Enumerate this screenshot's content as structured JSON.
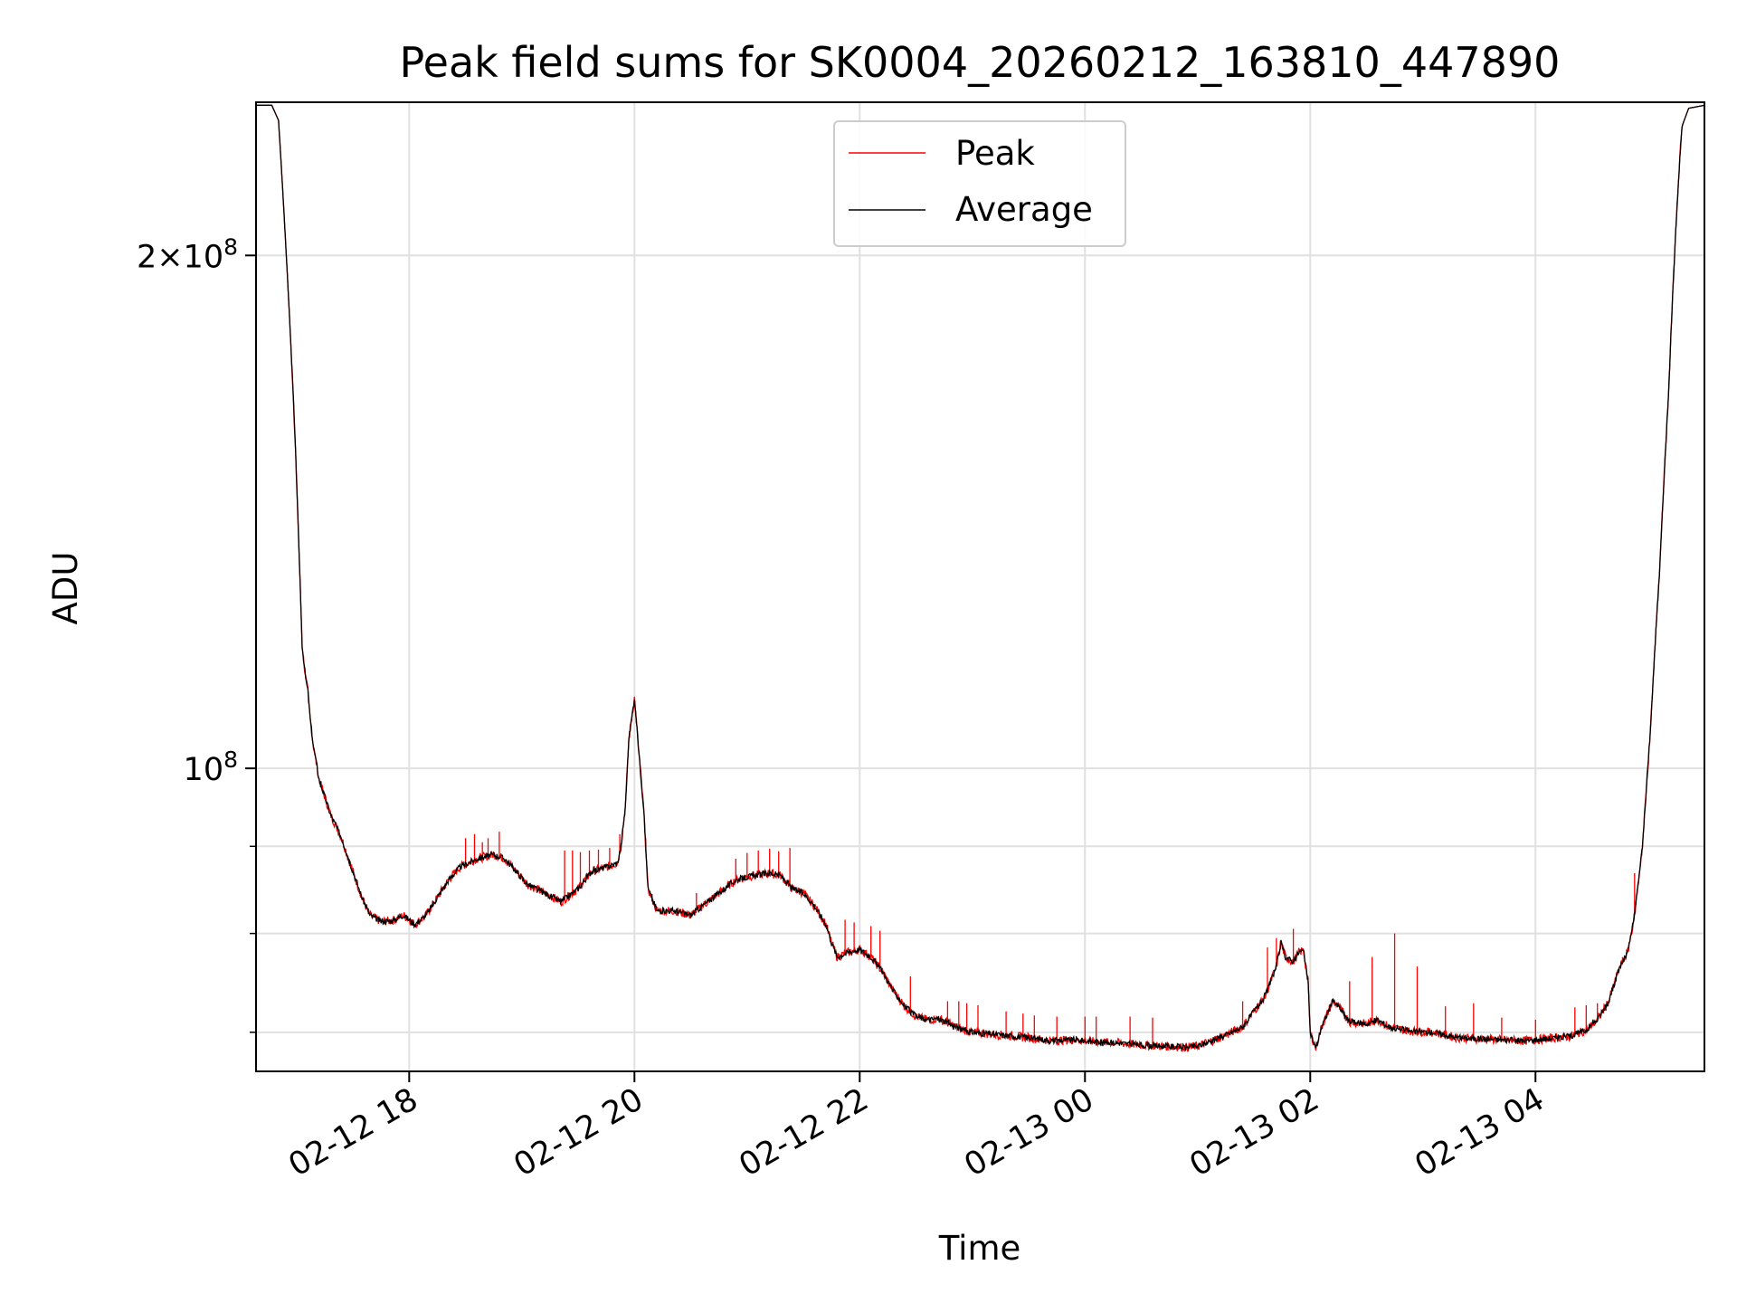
{
  "chart_data": {
    "type": "line",
    "scale": "log",
    "title": "Peak field sums for SK0004_20260212_163810_447890",
    "xlabel": "Time",
    "ylabel": "ADU",
    "xlim_hours": [
      16.64,
      29.5
    ],
    "ylim": [
      66400000,
      246000000
    ],
    "grid": true,
    "legend_position": "upper-center",
    "x_ticks": [
      {
        "hour": 18,
        "label": "02-12 18"
      },
      {
        "hour": 20,
        "label": "02-12 20"
      },
      {
        "hour": 22,
        "label": "02-12 22"
      },
      {
        "hour": 24,
        "label": "02-13 00"
      },
      {
        "hour": 26,
        "label": "02-13 02"
      },
      {
        "hour": 28,
        "label": "02-13 04"
      }
    ],
    "y_major_ticks": [
      {
        "value": 100000000,
        "base": "10",
        "exp": "8",
        "coef": ""
      },
      {
        "value": 200000000,
        "base": "10",
        "exp": "8",
        "coef": "2"
      }
    ],
    "y_minor_ticks": [
      70000000,
      80000000,
      90000000
    ],
    "average_series": {
      "name": "Average",
      "color": "#000000",
      "points": [
        [
          16.64,
          245
        ],
        [
          16.78,
          245
        ],
        [
          16.84,
          240
        ],
        [
          16.9,
          205
        ],
        [
          16.98,
          160
        ],
        [
          17.02,
          135
        ],
        [
          17.05,
          118
        ],
        [
          17.08,
          113
        ],
        [
          17.1,
          111
        ],
        [
          17.12,
          107
        ],
        [
          17.15,
          103
        ],
        [
          17.2,
          98.5
        ],
        [
          17.3,
          94
        ],
        [
          17.4,
          91
        ],
        [
          17.5,
          87
        ],
        [
          17.58,
          84
        ],
        [
          17.65,
          82
        ],
        [
          17.75,
          81.3
        ],
        [
          17.85,
          81.4
        ],
        [
          17.95,
          82
        ],
        [
          18.05,
          81
        ],
        [
          18.15,
          82
        ],
        [
          18.25,
          84
        ],
        [
          18.35,
          86
        ],
        [
          18.45,
          87.5
        ],
        [
          18.6,
          88.5
        ],
        [
          18.75,
          89
        ],
        [
          18.85,
          88.5
        ],
        [
          18.95,
          87
        ],
        [
          19.05,
          85.5
        ],
        [
          19.2,
          84.5
        ],
        [
          19.35,
          83.5
        ],
        [
          19.5,
          85
        ],
        [
          19.62,
          87
        ],
        [
          19.75,
          87.5
        ],
        [
          19.85,
          88
        ],
        [
          19.88,
          90
        ],
        [
          19.92,
          95
        ],
        [
          19.95,
          104
        ],
        [
          20.0,
          110
        ],
        [
          20.04,
          102
        ],
        [
          20.08,
          95
        ],
        [
          20.12,
          85
        ],
        [
          20.2,
          82.5
        ],
        [
          20.35,
          82.5
        ],
        [
          20.5,
          82
        ],
        [
          20.6,
          83
        ],
        [
          20.75,
          84.5
        ],
        [
          20.9,
          86
        ],
        [
          21.05,
          86.5
        ],
        [
          21.2,
          86.8
        ],
        [
          21.3,
          86.5
        ],
        [
          21.4,
          85
        ],
        [
          21.5,
          84.5
        ],
        [
          21.6,
          83
        ],
        [
          21.7,
          81
        ],
        [
          21.75,
          79
        ],
        [
          21.8,
          77.5
        ],
        [
          21.9,
          78
        ],
        [
          22.0,
          78.3
        ],
        [
          22.1,
          77.5
        ],
        [
          22.2,
          76
        ],
        [
          22.3,
          74
        ],
        [
          22.4,
          72.5
        ],
        [
          22.5,
          71.5
        ],
        [
          22.6,
          71.2
        ],
        [
          22.7,
          71.3
        ],
        [
          22.8,
          70.8
        ],
        [
          22.9,
          70.3
        ],
        [
          23.0,
          70.0
        ],
        [
          23.2,
          69.8
        ],
        [
          23.5,
          69.5
        ],
        [
          23.7,
          69.2
        ],
        [
          23.9,
          69.3
        ],
        [
          24.1,
          69.1
        ],
        [
          24.3,
          69.0
        ],
        [
          24.5,
          68.8
        ],
        [
          24.7,
          68.7
        ],
        [
          24.9,
          68.6
        ],
        [
          25.0,
          68.7
        ],
        [
          25.2,
          69.5
        ],
        [
          25.4,
          70.5
        ],
        [
          25.5,
          72
        ],
        [
          25.6,
          73.5
        ],
        [
          25.65,
          75
        ],
        [
          25.7,
          76.5
        ],
        [
          25.74,
          79
        ],
        [
          25.78,
          77.5
        ],
        [
          25.85,
          77
        ],
        [
          25.9,
          78
        ],
        [
          25.94,
          78.2
        ],
        [
          25.98,
          75
        ],
        [
          26.0,
          70
        ],
        [
          26.05,
          68.5
        ],
        [
          26.1,
          70.5
        ],
        [
          26.2,
          73
        ],
        [
          26.25,
          72.5
        ],
        [
          26.35,
          71
        ],
        [
          26.5,
          70.8
        ],
        [
          26.6,
          71.2
        ],
        [
          26.7,
          70.5
        ],
        [
          26.9,
          70.1
        ],
        [
          27.1,
          70.0
        ],
        [
          27.3,
          69.5
        ],
        [
          27.5,
          69.4
        ],
        [
          27.7,
          69.3
        ],
        [
          27.9,
          69.2
        ],
        [
          28.1,
          69.4
        ],
        [
          28.3,
          69.6
        ],
        [
          28.45,
          70.2
        ],
        [
          28.55,
          71.2
        ],
        [
          28.65,
          73
        ],
        [
          28.75,
          76.5
        ],
        [
          28.82,
          78
        ],
        [
          28.88,
          82
        ],
        [
          28.95,
          90
        ],
        [
          29.02,
          105
        ],
        [
          29.1,
          130
        ],
        [
          29.18,
          165
        ],
        [
          29.25,
          210
        ],
        [
          29.3,
          238
        ],
        [
          29.36,
          244
        ],
        [
          29.5,
          245
        ]
      ]
    },
    "peak_series": {
      "name": "Peak",
      "color": "#ff0000",
      "spikes": [
        [
          18.5,
          91
        ],
        [
          18.58,
          91.5
        ],
        [
          18.65,
          90.5
        ],
        [
          18.7,
          91
        ],
        [
          18.8,
          91.8
        ],
        [
          19.38,
          89.5
        ],
        [
          19.45,
          89.5
        ],
        [
          19.52,
          89.3
        ],
        [
          19.6,
          89.5
        ],
        [
          19.68,
          89.6
        ],
        [
          19.78,
          89.8
        ],
        [
          19.87,
          91.5
        ],
        [
          20.1,
          91
        ],
        [
          20.55,
          84.5
        ],
        [
          20.9,
          88.5
        ],
        [
          21.0,
          89.2
        ],
        [
          21.1,
          89.5
        ],
        [
          21.2,
          89.7
        ],
        [
          21.28,
          89.4
        ],
        [
          21.38,
          89.8
        ],
        [
          21.87,
          81.5
        ],
        [
          21.95,
          81.2
        ],
        [
          22.1,
          80.8
        ],
        [
          22.18,
          80.3
        ],
        [
          22.45,
          75.5
        ],
        [
          22.78,
          73.0
        ],
        [
          22.88,
          73.0
        ],
        [
          22.95,
          72.8
        ],
        [
          23.05,
          72.6
        ],
        [
          23.3,
          72.0
        ],
        [
          23.45,
          71.8
        ],
        [
          23.55,
          71.6
        ],
        [
          23.75,
          71.5
        ],
        [
          24.0,
          71.5
        ],
        [
          24.1,
          71.5
        ],
        [
          24.4,
          71.5
        ],
        [
          24.6,
          71.4
        ],
        [
          25.4,
          73
        ],
        [
          25.62,
          78.5
        ],
        [
          25.7,
          79.5
        ],
        [
          25.85,
          80.5
        ],
        [
          26.35,
          75
        ],
        [
          26.55,
          77.5
        ],
        [
          26.75,
          80
        ],
        [
          26.95,
          76.5
        ],
        [
          27.2,
          72.5
        ],
        [
          27.45,
          72.8
        ],
        [
          27.7,
          71.4
        ],
        [
          28.0,
          71.2
        ],
        [
          28.35,
          72.4
        ],
        [
          28.45,
          72.6
        ],
        [
          28.55,
          72.8
        ],
        [
          28.7,
          75
        ],
        [
          28.88,
          86.8
        ]
      ]
    },
    "legend": [
      {
        "name": "Peak",
        "color": "#ff0000"
      },
      {
        "name": "Average",
        "color": "#000000"
      }
    ]
  }
}
